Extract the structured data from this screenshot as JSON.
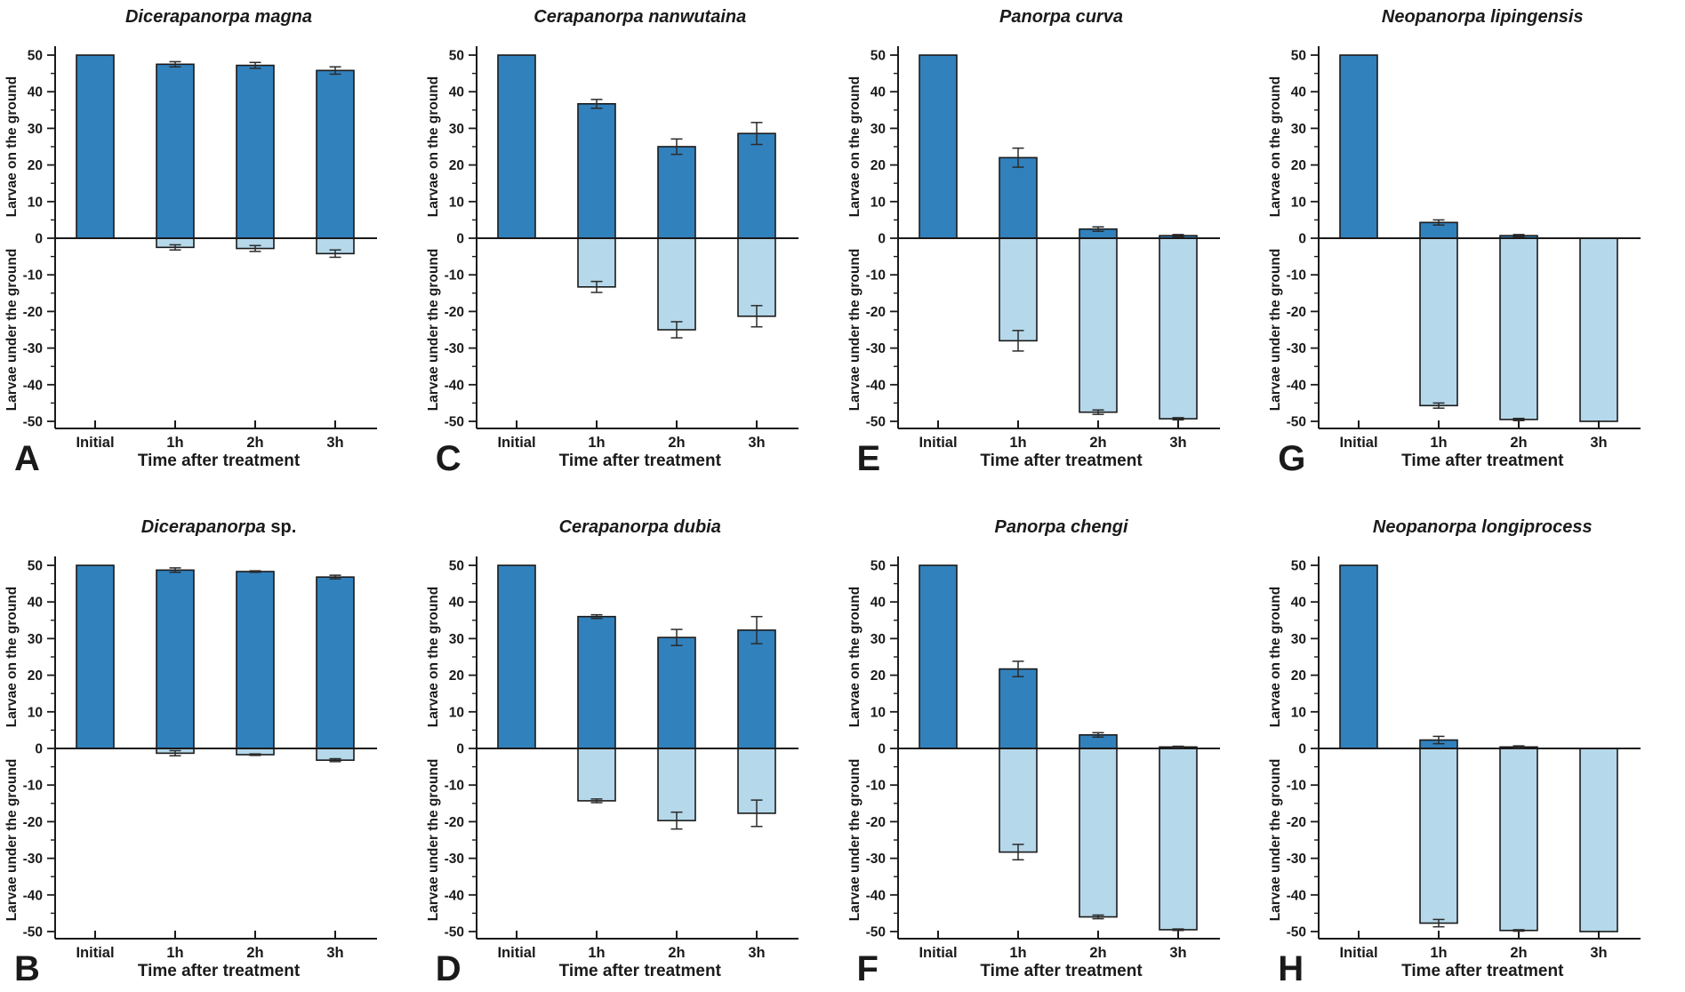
{
  "figure": {
    "background": "#ffffff",
    "bar_color_on": "#3181BD",
    "bar_color_under": "#B5D8EA",
    "bar_stroke": "#1a1a1a",
    "error_color": "#2b2b2b",
    "axis_color": "#1a1a1a"
  },
  "axis": {
    "x_label": "Time after treatment",
    "y_label_top": "Larvae on the ground",
    "y_label_bottom": "Larvae under the ground",
    "y_ticks": [
      50,
      40,
      30,
      20,
      10,
      0,
      -10,
      -20,
      -30,
      -40,
      -50
    ],
    "y_minor_ticks": [
      45,
      35,
      25,
      15,
      5,
      -5,
      -15,
      -25,
      -35,
      -45
    ],
    "ylim": [
      -50,
      50
    ],
    "categories": [
      "Initial",
      "1h",
      "2h",
      "3h"
    ]
  },
  "chart_data": [
    {
      "type": "bar",
      "letter": "A",
      "title_italic": "Dicerapanorpa magna",
      "title_roman": "",
      "categories": [
        "Initial",
        "1h",
        "2h",
        "3h"
      ],
      "ylim": [
        -50,
        50
      ],
      "series": [
        {
          "name": "Larvae on the ground",
          "values": [
            50,
            47.5,
            47.2,
            45.8
          ],
          "errors": [
            0,
            0.7,
            0.8,
            1.0
          ]
        },
        {
          "name": "Larvae under the ground",
          "values": [
            0,
            -2.5,
            -2.8,
            -4.2
          ],
          "errors": [
            0,
            0.7,
            0.8,
            1.0
          ]
        }
      ]
    },
    {
      "type": "bar",
      "letter": "C",
      "title_italic": "Cerapanorpa nanwutaina",
      "title_roman": "",
      "categories": [
        "Initial",
        "1h",
        "2h",
        "3h"
      ],
      "ylim": [
        -50,
        50
      ],
      "series": [
        {
          "name": "Larvae on the ground",
          "values": [
            50,
            36.7,
            25,
            28.6
          ],
          "errors": [
            0,
            1.2,
            2.1,
            3.0
          ]
        },
        {
          "name": "Larvae under the ground",
          "values": [
            0,
            -13.3,
            -25,
            -21.3
          ],
          "errors": [
            0,
            1.5,
            2.2,
            2.9
          ]
        }
      ]
    },
    {
      "type": "bar",
      "letter": "E",
      "title_italic": "Panorpa curva",
      "title_roman": "",
      "categories": [
        "Initial",
        "1h",
        "2h",
        "3h"
      ],
      "ylim": [
        -50,
        50
      ],
      "series": [
        {
          "name": "Larvae on the ground",
          "values": [
            50,
            22,
            2.5,
            0.7
          ],
          "errors": [
            0,
            2.6,
            0.6,
            0.3
          ]
        },
        {
          "name": "Larvae under the ground",
          "values": [
            0,
            -28,
            -47.5,
            -49.3
          ],
          "errors": [
            0,
            2.8,
            0.6,
            0.3
          ]
        }
      ]
    },
    {
      "type": "bar",
      "letter": "G",
      "title_italic": "Neopanorpa lipingensis",
      "title_roman": "",
      "categories": [
        "Initial",
        "1h",
        "2h",
        "3h"
      ],
      "ylim": [
        -50,
        50
      ],
      "series": [
        {
          "name": "Larvae on the ground",
          "values": [
            50,
            4.3,
            0.7,
            0
          ],
          "errors": [
            0,
            0.7,
            0.3,
            0
          ]
        },
        {
          "name": "Larvae under the ground",
          "values": [
            0,
            -45.7,
            -49.5,
            -50
          ],
          "errors": [
            0,
            0.7,
            0.3,
            0
          ]
        }
      ]
    },
    {
      "type": "bar",
      "letter": "B",
      "title_italic": "Dicerapanorpa",
      "title_roman": " sp.",
      "categories": [
        "Initial",
        "1h",
        "2h",
        "3h"
      ],
      "ylim": [
        -50,
        50
      ],
      "series": [
        {
          "name": "Larvae on the ground",
          "values": [
            50,
            48.7,
            48.3,
            46.8
          ],
          "errors": [
            0,
            0.6,
            0.2,
            0.5
          ]
        },
        {
          "name": "Larvae under the ground",
          "values": [
            0,
            -1.3,
            -1.7,
            -3.2
          ],
          "errors": [
            0,
            0.7,
            0.2,
            0.4
          ]
        }
      ]
    },
    {
      "type": "bar",
      "letter": "D",
      "title_italic": "Cerapanorpa dubia",
      "title_roman": "",
      "categories": [
        "Initial",
        "1h",
        "2h",
        "3h"
      ],
      "ylim": [
        -50,
        50
      ],
      "series": [
        {
          "name": "Larvae on the ground",
          "values": [
            50,
            36,
            30.3,
            32.3
          ],
          "errors": [
            0,
            0.5,
            2.2,
            3.7
          ]
        },
        {
          "name": "Larvae under the ground",
          "values": [
            0,
            -14.3,
            -19.7,
            -17.7
          ],
          "errors": [
            0,
            0.5,
            2.3,
            3.6
          ]
        }
      ]
    },
    {
      "type": "bar",
      "letter": "F",
      "title_italic": "Panorpa chengi",
      "title_roman": "",
      "categories": [
        "Initial",
        "1h",
        "2h",
        "3h"
      ],
      "ylim": [
        -50,
        50
      ],
      "series": [
        {
          "name": "Larvae on the ground",
          "values": [
            50,
            21.7,
            3.7,
            0.4
          ],
          "errors": [
            0,
            2.1,
            0.6,
            0.2
          ]
        },
        {
          "name": "Larvae under the ground",
          "values": [
            0,
            -28.3,
            -46,
            -49.5
          ],
          "errors": [
            0,
            2.1,
            0.5,
            0.2
          ]
        }
      ]
    },
    {
      "type": "bar",
      "letter": "H",
      "title_italic": "Neopanorpa longiprocess",
      "title_roman": "",
      "categories": [
        "Initial",
        "1h",
        "2h",
        "3h"
      ],
      "ylim": [
        -50,
        50
      ],
      "series": [
        {
          "name": "Larvae on the ground",
          "values": [
            50,
            2.3,
            0.4,
            0
          ],
          "errors": [
            0,
            1.0,
            0.3,
            0
          ]
        },
        {
          "name": "Larvae under the ground",
          "values": [
            0,
            -47.7,
            -49.7,
            -50
          ],
          "errors": [
            0,
            1.0,
            0.2,
            0
          ]
        }
      ]
    }
  ]
}
